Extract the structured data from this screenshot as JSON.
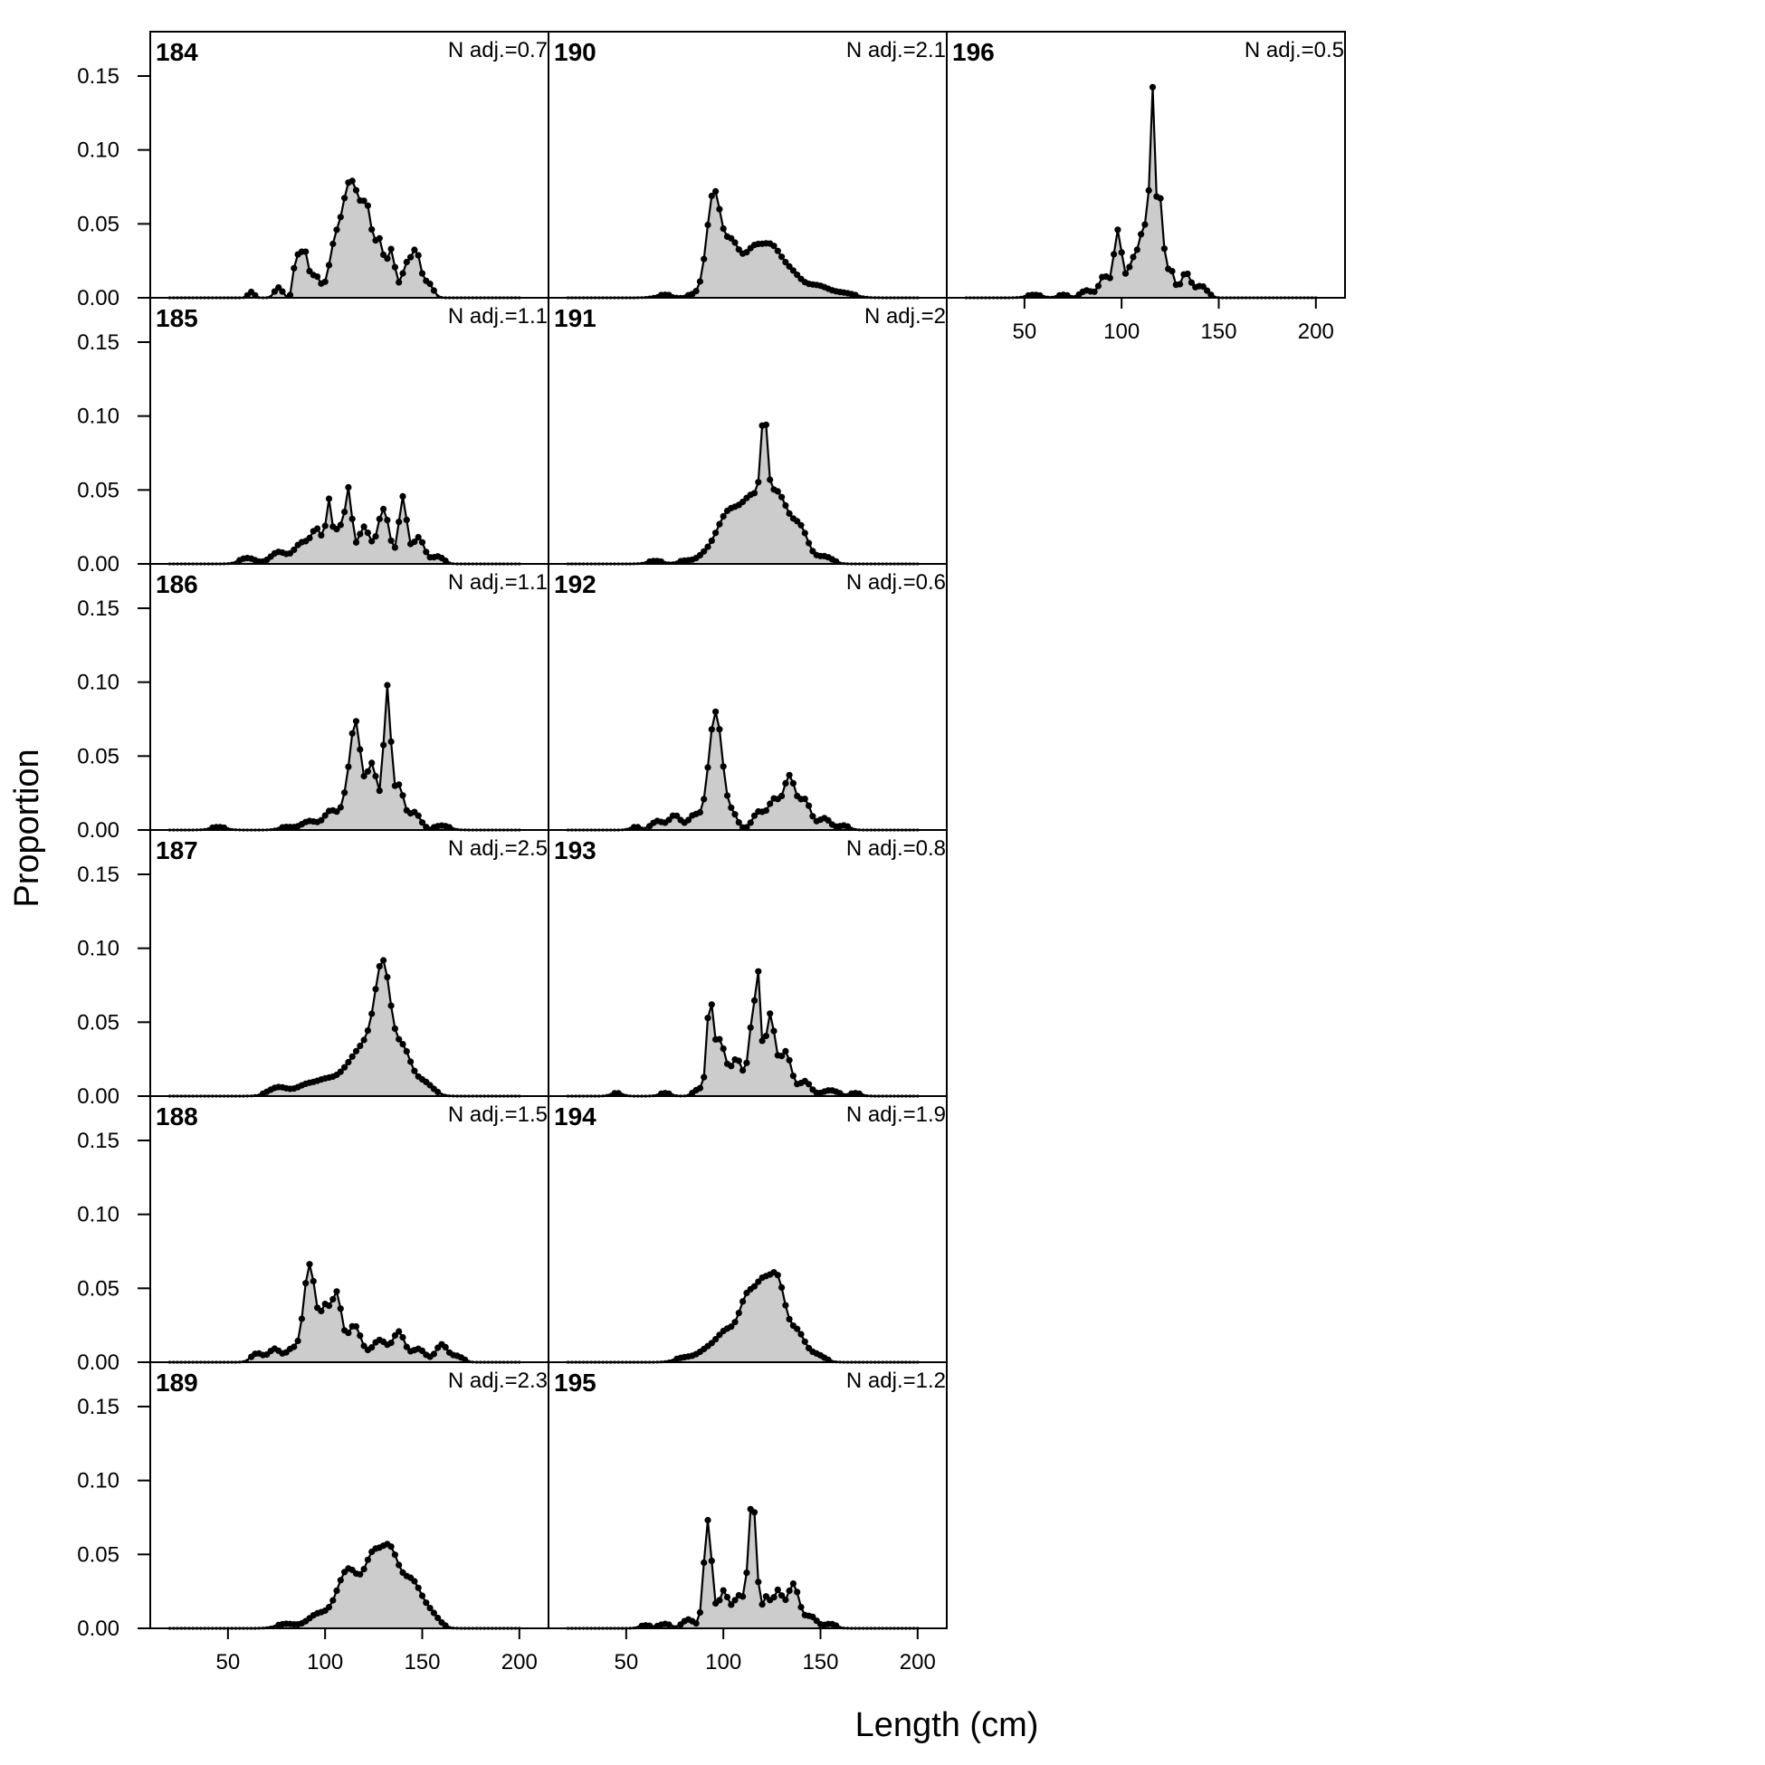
{
  "figure": {
    "xlabel": "Length (cm)",
    "ylabel": "Proportion"
  },
  "chart_data": {
    "type": "area",
    "layout": "faceted grid, 6 rows x 3 columns, panels fill column-wise",
    "xlim": [
      10,
      215
    ],
    "ylim": [
      0,
      0.18
    ],
    "x_ticks": [
      50,
      100,
      150,
      200
    ],
    "x_tick_labels": [
      "50",
      "100",
      "150",
      "200"
    ],
    "y_ticks": [
      0,
      0.05,
      0.1,
      0.15
    ],
    "y_tick_labels": [
      "0.00",
      "0.05",
      "0.10",
      "0.15"
    ],
    "x_bins": {
      "start": 20,
      "end": 200,
      "step": 2
    },
    "grid": false,
    "fill_color": "#cccccc",
    "line_color": "#000000",
    "panels": [
      {
        "title": "184",
        "n_adj": "N adj.=0.7",
        "row": 0,
        "col": 0,
        "show_x_labels": false,
        "peaks": [
          [
            62,
            0.004,
            1.5
          ],
          [
            76,
            0.007,
            2
          ],
          [
            85,
            0.025,
            1.3
          ],
          [
            89,
            0.033,
            2
          ],
          [
            95,
            0.015,
            2.5
          ],
          [
            105,
            0.035,
            3
          ],
          [
            111,
            0.048,
            3
          ],
          [
            116,
            0.058,
            3.5
          ],
          [
            122,
            0.048,
            2.5
          ],
          [
            128,
            0.037,
            2.2
          ],
          [
            134,
            0.032,
            2
          ],
          [
            142,
            0.022,
            2.5
          ],
          [
            147,
            0.029,
            2.2
          ],
          [
            153,
            0.01,
            2.5
          ]
        ]
      },
      {
        "title": "185",
        "n_adj": "N adj.=1.1",
        "row": 1,
        "col": 0,
        "show_x_labels": false,
        "peaks": [
          [
            60,
            0.004,
            4
          ],
          [
            76,
            0.008,
            4
          ],
          [
            88,
            0.014,
            4
          ],
          [
            96,
            0.022,
            3
          ],
          [
            102,
            0.04,
            1.5
          ],
          [
            107,
            0.025,
            2
          ],
          [
            112,
            0.05,
            1.8
          ],
          [
            120,
            0.025,
            3
          ],
          [
            130,
            0.037,
            3
          ],
          [
            140,
            0.045,
            2
          ],
          [
            148,
            0.018,
            3
          ],
          [
            158,
            0.005,
            3
          ]
        ]
      },
      {
        "title": "186",
        "n_adj": "N adj.=1.1",
        "row": 2,
        "col": 0,
        "show_x_labels": false,
        "peaks": [
          [
            45,
            0.002,
            4
          ],
          [
            80,
            0.002,
            4
          ],
          [
            92,
            0.006,
            4
          ],
          [
            103,
            0.013,
            3.5
          ],
          [
            112,
            0.025,
            3
          ],
          [
            116,
            0.062,
            2.5
          ],
          [
            124,
            0.045,
            3
          ],
          [
            132,
            0.095,
            1.8
          ],
          [
            138,
            0.03,
            2.5
          ],
          [
            146,
            0.012,
            3
          ],
          [
            160,
            0.003,
            4
          ]
        ]
      },
      {
        "title": "187",
        "n_adj": "N adj.=2.5",
        "row": 3,
        "col": 0,
        "show_x_labels": false,
        "peaks": [
          [
            76,
            0.006,
            5
          ],
          [
            90,
            0.007,
            5
          ],
          [
            100,
            0.009,
            5
          ],
          [
            112,
            0.015,
            6
          ],
          [
            122,
            0.03,
            6
          ],
          [
            130,
            0.078,
            4
          ],
          [
            140,
            0.03,
            4
          ],
          [
            150,
            0.01,
            5
          ]
        ]
      },
      {
        "title": "188",
        "n_adj": "N adj.=1.5",
        "row": 4,
        "col": 0,
        "show_x_labels": false,
        "peaks": [
          [
            65,
            0.006,
            3
          ],
          [
            74,
            0.009,
            3
          ],
          [
            83,
            0.009,
            3
          ],
          [
            92,
            0.066,
            3
          ],
          [
            100,
            0.035,
            2.5
          ],
          [
            106,
            0.045,
            2.5
          ],
          [
            115,
            0.025,
            3.5
          ],
          [
            128,
            0.015,
            4
          ],
          [
            138,
            0.02,
            3
          ],
          [
            148,
            0.009,
            3.5
          ],
          [
            160,
            0.012,
            3
          ],
          [
            168,
            0.004,
            3
          ]
        ]
      },
      {
        "title": "189",
        "n_adj": "N adj.=2.3",
        "row": 5,
        "col": 0,
        "show_x_labels": true,
        "peaks": [
          [
            80,
            0.003,
            5
          ],
          [
            96,
            0.009,
            5
          ],
          [
            112,
            0.04,
            6
          ],
          [
            124,
            0.036,
            4
          ],
          [
            133,
            0.052,
            5
          ],
          [
            145,
            0.03,
            5
          ],
          [
            155,
            0.008,
            4
          ]
        ]
      },
      {
        "title": "190",
        "n_adj": "N adj.=2.1",
        "row": 0,
        "col": 1,
        "show_x_labels": false,
        "peaks": [
          [
            70,
            0.002,
            5
          ],
          [
            85,
            0.002,
            4
          ],
          [
            95,
            0.07,
            3.5
          ],
          [
            104,
            0.035,
            4
          ],
          [
            115,
            0.03,
            5
          ],
          [
            125,
            0.03,
            5
          ],
          [
            135,
            0.015,
            5
          ],
          [
            148,
            0.008,
            6
          ],
          [
            162,
            0.003,
            6
          ]
        ]
      },
      {
        "title": "191",
        "n_adj": "N adj.=2",
        "row": 1,
        "col": 1,
        "show_x_labels": false,
        "peaks": [
          [
            65,
            0.002,
            4
          ],
          [
            80,
            0.002,
            4
          ],
          [
            90,
            0.004,
            4
          ],
          [
            102,
            0.032,
            6
          ],
          [
            115,
            0.04,
            6
          ],
          [
            121,
            0.058,
            1.5
          ],
          [
            128,
            0.045,
            6
          ],
          [
            140,
            0.02,
            4
          ],
          [
            152,
            0.005,
            4
          ]
        ]
      },
      {
        "title": "192",
        "n_adj": "N adj.=0.6",
        "row": 2,
        "col": 1,
        "show_x_labels": false,
        "peaks": [
          [
            55,
            0.002,
            3
          ],
          [
            66,
            0.006,
            3
          ],
          [
            75,
            0.01,
            3
          ],
          [
            85,
            0.01,
            3
          ],
          [
            96,
            0.08,
            3.5
          ],
          [
            105,
            0.01,
            2.5
          ],
          [
            118,
            0.012,
            3
          ],
          [
            126,
            0.02,
            3
          ],
          [
            134,
            0.036,
            3
          ],
          [
            142,
            0.02,
            3
          ],
          [
            152,
            0.008,
            3
          ],
          [
            162,
            0.003,
            3
          ]
        ]
      },
      {
        "title": "193",
        "n_adj": "N adj.=0.8",
        "row": 3,
        "col": 1,
        "show_x_labels": false,
        "peaks": [
          [
            45,
            0.002,
            3
          ],
          [
            70,
            0.002,
            3
          ],
          [
            88,
            0.005,
            3
          ],
          [
            93,
            0.057,
            1.5
          ],
          [
            98,
            0.038,
            3
          ],
          [
            107,
            0.025,
            3
          ],
          [
            115,
            0.05,
            2
          ],
          [
            118,
            0.065,
            1.3
          ],
          [
            124,
            0.055,
            2.5
          ],
          [
            132,
            0.03,
            3
          ],
          [
            142,
            0.01,
            3
          ],
          [
            155,
            0.004,
            4
          ],
          [
            168,
            0.002,
            3
          ]
        ]
      },
      {
        "title": "194",
        "n_adj": "N adj.=1.9",
        "row": 4,
        "col": 1,
        "show_x_labels": false,
        "peaks": [
          [
            80,
            0.003,
            5
          ],
          [
            92,
            0.008,
            5
          ],
          [
            102,
            0.02,
            5
          ],
          [
            112,
            0.038,
            4
          ],
          [
            120,
            0.045,
            4
          ],
          [
            128,
            0.052,
            4
          ],
          [
            138,
            0.02,
            4
          ],
          [
            148,
            0.005,
            4
          ]
        ]
      },
      {
        "title": "195",
        "n_adj": "N adj.=1.2",
        "row": 5,
        "col": 1,
        "show_x_labels": true,
        "peaks": [
          [
            60,
            0.002,
            3
          ],
          [
            70,
            0.003,
            3
          ],
          [
            82,
            0.006,
            3
          ],
          [
            92,
            0.073,
            2
          ],
          [
            100,
            0.025,
            2.5
          ],
          [
            108,
            0.022,
            3
          ],
          [
            115,
            0.088,
            2
          ],
          [
            122,
            0.02,
            2
          ],
          [
            128,
            0.025,
            2.5
          ],
          [
            136,
            0.03,
            3
          ],
          [
            145,
            0.008,
            3
          ],
          [
            155,
            0.003,
            3
          ]
        ]
      },
      {
        "title": "196",
        "n_adj": "N adj.=0.5",
        "row": 0,
        "col": 2,
        "show_x_labels": true,
        "peaks": [
          [
            55,
            0.002,
            4
          ],
          [
            70,
            0.002,
            3
          ],
          [
            82,
            0.005,
            3
          ],
          [
            91,
            0.015,
            2.5
          ],
          [
            98,
            0.045,
            2
          ],
          [
            106,
            0.025,
            3
          ],
          [
            112,
            0.045,
            2.5
          ],
          [
            116,
            0.128,
            1.3
          ],
          [
            120,
            0.065,
            1.5
          ],
          [
            125,
            0.02,
            2
          ],
          [
            133,
            0.017,
            2.5
          ],
          [
            141,
            0.008,
            3
          ]
        ]
      }
    ]
  }
}
